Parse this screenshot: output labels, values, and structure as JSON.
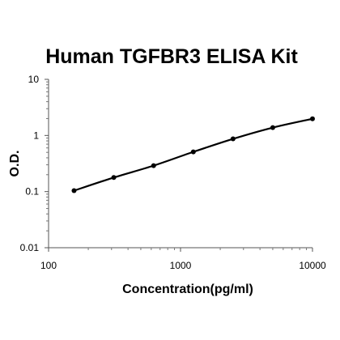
{
  "chart_data": {
    "type": "scatter",
    "title": "Human TGFBR3 ELISA Kit",
    "xlabel": "Concentration(pg/ml)",
    "ylabel": "O.D.",
    "x_scale": "log",
    "y_scale": "log",
    "xlim": [
      100,
      10000
    ],
    "ylim": [
      0.01,
      10
    ],
    "x_ticks": [
      {
        "value": 100,
        "label": "100"
      },
      {
        "value": 1000,
        "label": "1000"
      },
      {
        "value": 10000,
        "label": "10000"
      }
    ],
    "y_ticks": [
      {
        "value": 10,
        "label": "10"
      },
      {
        "value": 1,
        "label": "1"
      },
      {
        "value": 0.1,
        "label": "0.1"
      },
      {
        "value": 0.01,
        "label": "0.01"
      }
    ],
    "grid": false,
    "legend": false,
    "series": [
      {
        "x": [
          156,
          312,
          625,
          1250,
          2500,
          5000,
          10000
        ],
        "y": [
          0.104,
          0.178,
          0.29,
          0.51,
          0.87,
          1.38,
          1.98
        ]
      }
    ],
    "line_color": "#000000",
    "marker_color": "#000000"
  }
}
